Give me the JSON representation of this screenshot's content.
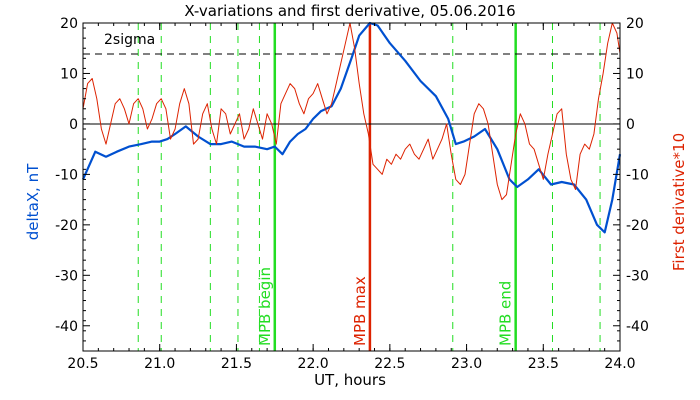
{
  "chart_data": {
    "type": "line",
    "title": "X-variations and first derivative, 05.06.2016",
    "xlabel": "UT, hours",
    "ylabel_left": "deltaX, nT",
    "ylabel_right": "First derivative*10",
    "xlim": [
      20.5,
      24.0
    ],
    "ylim": [
      -45,
      20
    ],
    "x_ticks": [
      "20.5",
      "21.0",
      "21.5",
      "22.0",
      "22.5",
      "23.0",
      "23.5",
      "24.0"
    ],
    "y_ticks": [
      "20",
      "10",
      "0",
      "-10",
      "-20",
      "-30",
      "-40"
    ],
    "sigma_label": "2sigma",
    "sigma_level": 14,
    "colors": {
      "deltaX": "#0050d0",
      "derivative": "#dd2200",
      "mpb_edges": "#22dd22",
      "mpb_max": "#dd2200",
      "dashed_green": "#22dd22",
      "ylabel_left": "#0050d0",
      "ylabel_right": "#dd2200"
    },
    "vertical_markers": [
      {
        "label": "MPB begin",
        "x": 21.75,
        "color": "#22dd22"
      },
      {
        "label": "MPB max",
        "x": 22.37,
        "color": "#dd2200"
      },
      {
        "label": "MPB end",
        "x": 23.32,
        "color": "#22dd22"
      }
    ],
    "dashed_lines": [
      20.86,
      21.01,
      21.33,
      21.51,
      21.65,
      22.91,
      23.56,
      23.87
    ],
    "series": [
      {
        "name": "deltaX, nT",
        "x": [
          20.5,
          20.58,
          20.65,
          20.72,
          20.8,
          20.88,
          20.95,
          21.0,
          21.05,
          21.1,
          21.17,
          21.25,
          21.33,
          21.4,
          21.47,
          21.55,
          21.62,
          21.7,
          21.75,
          21.8,
          21.85,
          21.9,
          21.95,
          22.0,
          22.05,
          22.12,
          22.18,
          22.25,
          22.3,
          22.37,
          22.42,
          22.5,
          22.6,
          22.7,
          22.8,
          22.88,
          22.93,
          22.98,
          23.05,
          23.12,
          23.2,
          23.28,
          23.33,
          23.4,
          23.47,
          23.55,
          23.62,
          23.7,
          23.78,
          23.85,
          23.9,
          23.95,
          24.0
        ],
        "y": [
          -11,
          -5.5,
          -6.5,
          -5.5,
          -4.5,
          -4,
          -3.5,
          -3.5,
          -3,
          -2,
          -0.5,
          -2.5,
          -4,
          -4,
          -3.5,
          -4.5,
          -4.5,
          -5,
          -4.5,
          -6,
          -3.5,
          -2,
          -1,
          1,
          2.5,
          3.5,
          7,
          13,
          17.5,
          20,
          19.5,
          16,
          12.5,
          8.5,
          5.5,
          1,
          -4,
          -3.5,
          -2.5,
          -1,
          -5,
          -11,
          -12.5,
          -11,
          -9,
          -12,
          -11.5,
          -12,
          -15,
          -20,
          -21.5,
          -15,
          -6
        ]
      },
      {
        "name": "First derivative*10",
        "x": [
          20.5,
          20.53,
          20.56,
          20.59,
          20.62,
          20.65,
          20.68,
          20.71,
          20.74,
          20.77,
          20.8,
          20.83,
          20.86,
          20.89,
          20.92,
          20.95,
          20.98,
          21.01,
          21.04,
          21.07,
          21.1,
          21.13,
          21.16,
          21.19,
          21.22,
          21.25,
          21.28,
          21.31,
          21.34,
          21.37,
          21.4,
          21.43,
          21.46,
          21.49,
          21.52,
          21.55,
          21.58,
          21.61,
          21.64,
          21.67,
          21.7,
          21.73,
          21.76,
          21.79,
          21.82,
          21.85,
          21.88,
          21.91,
          21.94,
          21.97,
          22.0,
          22.03,
          22.06,
          22.09,
          22.12,
          22.15,
          22.18,
          22.21,
          22.24,
          22.27,
          22.3,
          22.33,
          22.36,
          22.39,
          22.42,
          22.45,
          22.48,
          22.51,
          22.54,
          22.57,
          22.6,
          22.63,
          22.66,
          22.69,
          22.72,
          22.75,
          22.78,
          22.81,
          22.84,
          22.87,
          22.9,
          22.93,
          22.96,
          22.99,
          23.02,
          23.05,
          23.08,
          23.11,
          23.14,
          23.17,
          23.2,
          23.23,
          23.26,
          23.29,
          23.32,
          23.35,
          23.38,
          23.41,
          23.44,
          23.47,
          23.5,
          23.53,
          23.56,
          23.59,
          23.62,
          23.65,
          23.68,
          23.71,
          23.74,
          23.77,
          23.8,
          23.83,
          23.86,
          23.89,
          23.92,
          23.95,
          23.98,
          24.0
        ],
        "y": [
          3,
          8,
          9,
          5,
          -1,
          -4,
          0,
          4,
          5,
          3,
          0,
          4,
          5,
          3,
          -1,
          1,
          4,
          5,
          3,
          -3,
          -1,
          4,
          7,
          4,
          -4,
          -3,
          2,
          4,
          -1,
          -4,
          3,
          2,
          -2,
          0,
          2,
          -3,
          -1,
          3,
          0,
          -3,
          2,
          0,
          -4,
          4,
          6,
          8,
          7,
          4,
          2,
          5,
          6,
          8,
          5,
          2,
          4,
          8,
          12,
          16,
          20,
          15,
          8,
          2,
          -2,
          -8,
          -9,
          -10,
          -7,
          -8,
          -6,
          -7,
          -5,
          -4,
          -6,
          -7,
          -5,
          -3,
          -7,
          -5,
          -3,
          0,
          -6,
          -11,
          -12,
          -10,
          -4,
          2,
          4,
          3,
          0,
          -6,
          -12,
          -15,
          -14,
          -8,
          -2,
          2,
          0,
          -4,
          -5,
          -8,
          -11,
          -6,
          -2,
          2,
          3,
          -6,
          -11,
          -13,
          -6,
          -4,
          -5,
          -2,
          5,
          10,
          16,
          20,
          18,
          14
        ]
      }
    ]
  }
}
